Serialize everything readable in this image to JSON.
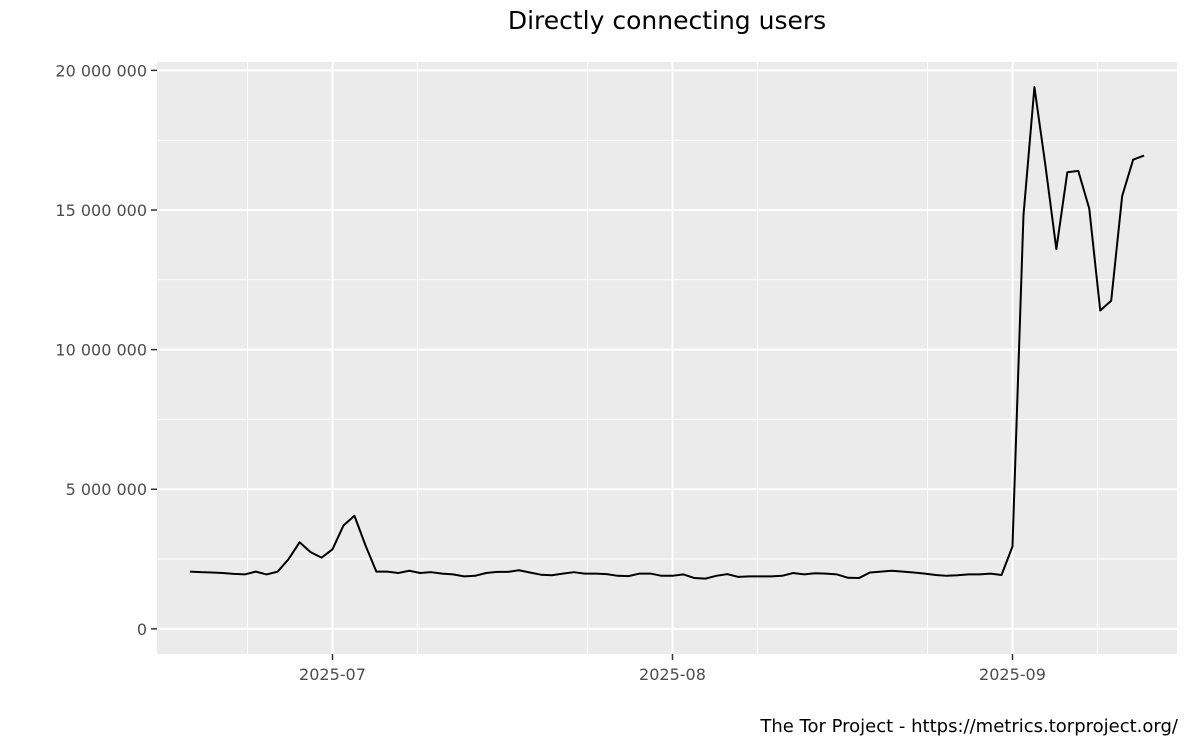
{
  "chart_data": {
    "type": "line",
    "title": "Directly connecting users",
    "xlabel": "",
    "ylabel": "",
    "caption": "The Tor Project - https://metrics.torproject.org/",
    "xlim": [
      "2025-06-15",
      "2025-09-16"
    ],
    "ylim": [
      -900000,
      20300000
    ],
    "x_ticks": [
      {
        "date": "2025-07-01",
        "label": "2025-07"
      },
      {
        "date": "2025-08-01",
        "label": "2025-08"
      },
      {
        "date": "2025-09-01",
        "label": "2025-09"
      }
    ],
    "y_ticks": [
      {
        "value": 0,
        "label": "0"
      },
      {
        "value": 5000000,
        "label": "5 000 000"
      },
      {
        "value": 10000000,
        "label": "10 000 000"
      },
      {
        "value": 15000000,
        "label": "15 000 000"
      },
      {
        "value": 20000000,
        "label": "20 000 000"
      }
    ],
    "grid": true,
    "background": "#ebebeb",
    "line_color": "#000000",
    "series": [
      {
        "x": [
          "2025-06-18",
          "2025-06-19",
          "2025-06-20",
          "2025-06-21",
          "2025-06-22",
          "2025-06-23",
          "2025-06-24",
          "2025-06-25",
          "2025-06-26",
          "2025-06-27",
          "2025-06-28",
          "2025-06-29",
          "2025-06-30",
          "2025-07-01",
          "2025-07-02",
          "2025-07-03",
          "2025-07-04",
          "2025-07-05",
          "2025-07-06",
          "2025-07-07",
          "2025-07-08",
          "2025-07-09",
          "2025-07-10",
          "2025-07-11",
          "2025-07-12",
          "2025-07-13",
          "2025-07-14",
          "2025-07-15",
          "2025-07-16",
          "2025-07-17",
          "2025-07-18",
          "2025-07-19",
          "2025-07-20",
          "2025-07-21",
          "2025-07-22",
          "2025-07-23",
          "2025-07-24",
          "2025-07-25",
          "2025-07-26",
          "2025-07-27",
          "2025-07-28",
          "2025-07-29",
          "2025-07-30",
          "2025-07-31",
          "2025-08-01",
          "2025-08-02",
          "2025-08-03",
          "2025-08-04",
          "2025-08-05",
          "2025-08-06",
          "2025-08-07",
          "2025-08-08",
          "2025-08-09",
          "2025-08-10",
          "2025-08-11",
          "2025-08-12",
          "2025-08-13",
          "2025-08-14",
          "2025-08-15",
          "2025-08-16",
          "2025-08-17",
          "2025-08-18",
          "2025-08-19",
          "2025-08-20",
          "2025-08-21",
          "2025-08-22",
          "2025-08-23",
          "2025-08-24",
          "2025-08-25",
          "2025-08-26",
          "2025-08-27",
          "2025-08-28",
          "2025-08-29",
          "2025-08-30",
          "2025-08-31",
          "2025-09-01",
          "2025-09-02",
          "2025-09-03",
          "2025-09-04",
          "2025-09-05",
          "2025-09-06",
          "2025-09-07",
          "2025-09-08",
          "2025-09-09",
          "2025-09-10",
          "2025-09-11",
          "2025-09-12",
          "2025-09-13"
        ],
        "values": [
          2050000,
          2030000,
          2020000,
          2000000,
          1970000,
          1950000,
          2050000,
          1950000,
          2050000,
          2500000,
          3100000,
          2750000,
          2550000,
          2850000,
          3700000,
          4050000,
          3000000,
          2050000,
          2050000,
          2000000,
          2080000,
          2000000,
          2030000,
          1980000,
          1950000,
          1880000,
          1900000,
          2000000,
          2040000,
          2040000,
          2100000,
          2020000,
          1940000,
          1920000,
          1980000,
          2030000,
          1980000,
          1980000,
          1960000,
          1900000,
          1890000,
          1980000,
          1980000,
          1900000,
          1900000,
          1950000,
          1820000,
          1800000,
          1900000,
          1960000,
          1860000,
          1880000,
          1880000,
          1880000,
          1900000,
          2000000,
          1950000,
          1990000,
          1980000,
          1950000,
          1830000,
          1820000,
          2020000,
          2050000,
          2080000,
          2050000,
          2020000,
          1980000,
          1930000,
          1900000,
          1920000,
          1950000,
          1950000,
          1980000,
          1930000,
          2950000,
          14800000,
          19400000,
          16600000,
          13600000,
          16350000,
          16400000,
          15050000,
          11400000,
          11750000,
          15500000,
          16800000,
          16950000
        ]
      }
    ]
  }
}
